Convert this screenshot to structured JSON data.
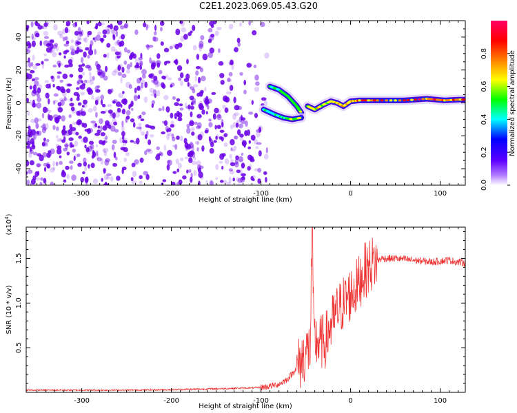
{
  "title": "C2E1.2023.069.05.43.G20",
  "colors": {
    "snr_line": "#ee3333",
    "scatter_points": "#6a00e8",
    "colormap": [
      "#ffffff",
      "#7b00ff",
      "#0000ff",
      "#00ffff",
      "#00ff00",
      "#ffff00",
      "#ff8000",
      "#ff0000",
      "#ff0066"
    ]
  },
  "chart_data": [
    {
      "type": "heatmap",
      "title": "",
      "xlabel": "Height of straight line (km)",
      "ylabel": "Frequency (Hz)",
      "xlim": [
        -362,
        128
      ],
      "ylim": [
        -50,
        50
      ],
      "x_ticks": [
        -300,
        -200,
        -100,
        0,
        100
      ],
      "y_ticks": [
        -40,
        -20,
        0,
        20,
        40
      ],
      "colorbar": {
        "label": "Normalized spectral amplitude",
        "range": [
          0,
          1
        ],
        "ticks": [
          0.0,
          0.2,
          0.4,
          0.6,
          0.8
        ]
      },
      "ridge_upper_branch": [
        [
          -90,
          10
        ],
        [
          -80,
          8
        ],
        [
          -70,
          4
        ],
        [
          -60,
          -2
        ],
        [
          -55,
          -6
        ]
      ],
      "ridge_lower_branch": [
        [
          -97,
          -4
        ],
        [
          -85,
          -7
        ],
        [
          -75,
          -9
        ],
        [
          -65,
          -10
        ],
        [
          -55,
          -9
        ]
      ],
      "ridge_main": [
        [
          -48,
          -2
        ],
        [
          -40,
          -4
        ],
        [
          -30,
          -1
        ],
        [
          -22,
          1
        ],
        [
          -15,
          0
        ],
        [
          -8,
          -2
        ],
        [
          0,
          1
        ],
        [
          10,
          1.5
        ],
        [
          30,
          1.5
        ],
        [
          60,
          1.5
        ],
        [
          85,
          2.5
        ],
        [
          95,
          2
        ],
        [
          105,
          1.5
        ],
        [
          120,
          2
        ],
        [
          128,
          2
        ]
      ],
      "ridge_peak_amplitude": [
        [
          -90,
          0.5
        ],
        [
          -70,
          0.6
        ],
        [
          -50,
          0.7
        ],
        [
          -20,
          0.75
        ],
        [
          0,
          0.8
        ],
        [
          30,
          0.85
        ],
        [
          60,
          0.85
        ],
        [
          90,
          0.9
        ],
        [
          120,
          0.85
        ]
      ],
      "scatter_density_regions": [
        {
          "x_range": [
            -362,
            -250
          ],
          "y_range": [
            -50,
            50
          ],
          "density": "high"
        },
        {
          "x_range": [
            -250,
            -100
          ],
          "y_range": [
            -50,
            50
          ],
          "density": "medium"
        },
        {
          "x_range": [
            -200,
            -100
          ],
          "y_range": [
            -50,
            -10
          ],
          "density": "high"
        }
      ]
    },
    {
      "type": "line",
      "title": "",
      "xlabel": "Height of straight line (km)",
      "ylabel": "SNR (10 * v/v)",
      "y_multiplier": "(x10",
      "y_multiplier_exp": "4",
      "xlim": [
        -362,
        128
      ],
      "ylim": [
        0,
        18500
      ],
      "x_ticks": [
        -300,
        -200,
        -100,
        0,
        100
      ],
      "y_ticks": [
        5000,
        10000,
        15000
      ],
      "y_tick_labels": [
        "0.5",
        "1.0",
        "1.5"
      ],
      "series": [
        {
          "values_xy": [
            [
              -362,
              250
            ],
            [
              -300,
              250
            ],
            [
              -250,
              250
            ],
            [
              -200,
              300
            ],
            [
              -150,
              400
            ],
            [
              -110,
              500
            ],
            [
              -95,
              600
            ],
            [
              -80,
              900
            ],
            [
              -70,
              1500
            ],
            [
              -62,
              2500
            ],
            [
              -55,
              3500
            ],
            [
              -50,
              4500
            ],
            [
              -45,
              5000
            ],
            [
              -43,
              18500
            ],
            [
              -41,
              6000
            ],
            [
              -35,
              5500
            ],
            [
              -28,
              5800
            ],
            [
              -22,
              7500
            ],
            [
              -15,
              9000
            ],
            [
              -8,
              10000
            ],
            [
              0,
              11000
            ],
            [
              8,
              12000
            ],
            [
              15,
              13500
            ],
            [
              25,
              14500
            ],
            [
              35,
              15000
            ],
            [
              50,
              15000
            ],
            [
              70,
              14800
            ],
            [
              90,
              14600
            ],
            [
              100,
              14700
            ],
            [
              110,
              14800
            ],
            [
              120,
              14600
            ],
            [
              128,
              14500
            ]
          ]
        }
      ]
    }
  ]
}
